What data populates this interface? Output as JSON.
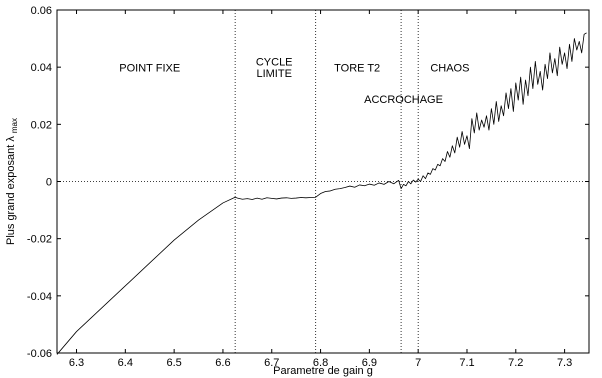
{
  "chart_data": {
    "type": "line",
    "title": "",
    "xlabel": "Parametre de gain g",
    "ylabel": {
      "main": "Plus grand exposant λ",
      "subscript": "max"
    },
    "xlim": [
      6.26,
      7.35
    ],
    "ylim": [
      -0.06,
      0.06
    ],
    "xticks": [
      "6.3",
      "6.4",
      "6.5",
      "6.6",
      "6.7",
      "6.8",
      "6.9",
      "7",
      "7.1",
      "7.2",
      "7.3"
    ],
    "yticks": [
      "-0.06",
      "-0.04",
      "-0.02",
      "0",
      "0.02",
      "0.04",
      "0.06"
    ],
    "grid": false,
    "reference_lines": {
      "horizontal_y": 0,
      "vertical_x": [
        6.625,
        6.79,
        6.965,
        7.0
      ]
    },
    "annotations": [
      {
        "text": "POINT FIXE",
        "x": 6.45,
        "y": 0.0385,
        "name": "label-point-fixe"
      },
      {
        "text": "CYCLE",
        "x": 6.705,
        "y": 0.0405,
        "name": "label-cycle"
      },
      {
        "text": "LIMITE",
        "x": 6.705,
        "y": 0.0365,
        "name": "label-limite"
      },
      {
        "text": "TORE T2",
        "x": 6.875,
        "y": 0.0385,
        "name": "label-tore-t2"
      },
      {
        "text": "ACCROCHAGE",
        "x": 6.97,
        "y": 0.0275,
        "name": "label-accrochage"
      },
      {
        "text": "CHAOS",
        "x": 7.065,
        "y": 0.0385,
        "name": "label-chaos"
      }
    ],
    "series": [
      {
        "x": [
          6.26,
          6.3,
          6.35,
          6.4,
          6.45,
          6.5,
          6.55,
          6.6,
          6.625,
          6.63,
          6.64,
          6.65,
          6.66,
          6.67,
          6.68,
          6.69,
          6.7,
          6.71,
          6.72,
          6.73,
          6.74,
          6.75,
          6.76,
          6.77,
          6.78,
          6.79,
          6.8,
          6.81,
          6.82,
          6.83,
          6.84,
          6.85,
          6.86,
          6.87,
          6.88,
          6.89,
          6.9,
          6.91,
          6.92,
          6.93,
          6.94,
          6.95,
          6.96,
          6.965,
          6.97,
          6.975,
          6.98,
          6.985,
          6.99,
          6.995,
          7.0,
          7.005,
          7.01,
          7.015,
          7.02,
          7.025,
          7.03,
          7.035,
          7.04,
          7.045,
          7.05,
          7.055,
          7.06,
          7.065,
          7.07,
          7.075,
          7.08,
          7.085,
          7.09,
          7.095,
          7.1,
          7.105,
          7.11,
          7.115,
          7.12,
          7.125,
          7.13,
          7.135,
          7.14,
          7.145,
          7.15,
          7.155,
          7.16,
          7.165,
          7.17,
          7.175,
          7.18,
          7.185,
          7.19,
          7.195,
          7.2,
          7.205,
          7.21,
          7.215,
          7.22,
          7.225,
          7.23,
          7.235,
          7.24,
          7.245,
          7.25,
          7.255,
          7.26,
          7.265,
          7.27,
          7.275,
          7.28,
          7.285,
          7.29,
          7.295,
          7.3,
          7.305,
          7.31,
          7.315,
          7.32,
          7.325,
          7.33,
          7.335,
          7.34,
          7.345
        ],
        "y": [
          -0.0605,
          -0.0525,
          -0.0445,
          -0.0365,
          -0.0285,
          -0.0205,
          -0.0135,
          -0.0075,
          -0.0055,
          -0.0058,
          -0.0062,
          -0.006,
          -0.0063,
          -0.0058,
          -0.0062,
          -0.0057,
          -0.0059,
          -0.0061,
          -0.0058,
          -0.0057,
          -0.0059,
          -0.0058,
          -0.0056,
          -0.0057,
          -0.0056,
          -0.0055,
          -0.0042,
          -0.0035,
          -0.0033,
          -0.0027,
          -0.0025,
          -0.0021,
          -0.0016,
          -0.002,
          -0.0012,
          -0.0015,
          -0.0009,
          -0.0013,
          -0.0005,
          -0.001,
          0.0,
          -0.0008,
          0.0004,
          -0.0025,
          -0.001,
          -0.0015,
          0.0,
          -0.0008,
          0.0005,
          -0.0002,
          0.0008,
          0.0,
          0.002,
          0.001,
          0.003,
          0.0025,
          0.0045,
          0.004,
          0.006,
          0.0055,
          0.008,
          0.007,
          0.0105,
          0.0085,
          0.0125,
          0.01,
          0.0155,
          0.012,
          0.0175,
          0.013,
          0.016,
          0.0115,
          0.022,
          0.017,
          0.024,
          0.018,
          0.0215,
          0.019,
          0.023,
          0.018,
          0.0255,
          0.02,
          0.028,
          0.021,
          0.0265,
          0.023,
          0.031,
          0.0255,
          0.0325,
          0.0245,
          0.0345,
          0.0285,
          0.0365,
          0.027,
          0.0355,
          0.03,
          0.04,
          0.0325,
          0.042,
          0.034,
          0.0385,
          0.032,
          0.041,
          0.036,
          0.045,
          0.038,
          0.043,
          0.037,
          0.047,
          0.041,
          0.045,
          0.0395,
          0.048,
          0.042,
          0.05,
          0.046,
          0.049,
          0.045,
          0.0515,
          0.052
        ]
      }
    ]
  }
}
